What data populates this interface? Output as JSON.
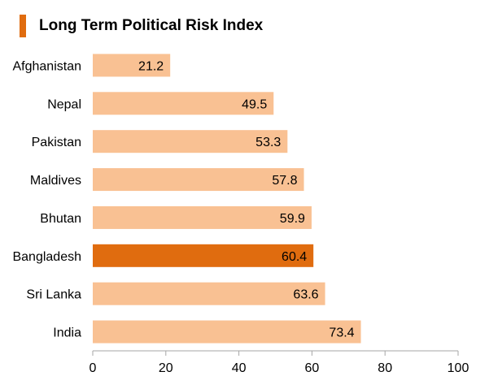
{
  "colors": {
    "accent": "#e06c0f",
    "bar": "#f9c193",
    "highlight": "#e06c0f",
    "axis": "#a6a6a6",
    "text": "#000000"
  },
  "chart_data": {
    "type": "bar",
    "orientation": "horizontal",
    "title": "Long Term Political Risk Index",
    "xlabel": "",
    "ylabel": "",
    "categories": [
      "Afghanistan",
      "Nepal",
      "Pakistan",
      "Maldives",
      "Bhutan",
      "Bangladesh",
      "Sri Lanka",
      "India"
    ],
    "values": [
      21.2,
      49.5,
      53.3,
      57.8,
      59.9,
      60.4,
      63.6,
      73.4
    ],
    "highlight_category": "Bangladesh",
    "xlim": [
      0,
      100
    ],
    "xticks": [
      0,
      20,
      40,
      60,
      80,
      100
    ],
    "grid": false,
    "data_labels": true
  }
}
